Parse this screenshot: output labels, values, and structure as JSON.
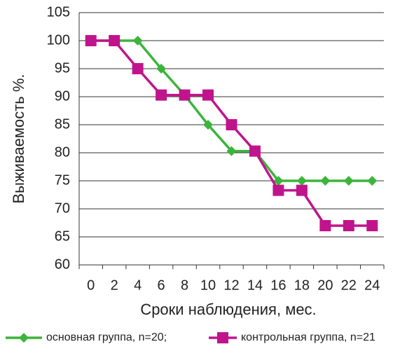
{
  "chart_data": {
    "type": "line",
    "x_label": "Сроки наблюдения, мес.",
    "y_label": "Выживаемость %.",
    "categories": [
      "0",
      "2",
      "4",
      "6",
      "8",
      "10",
      "12",
      "14",
      "16",
      "18",
      "20",
      "22",
      "24"
    ],
    "series": [
      {
        "name": "основная группа, n=20;",
        "color": "#3cb43c",
        "marker": "diamond",
        "values": [
          100,
          100,
          100,
          95,
          90.3,
          85,
          80.3,
          80.3,
          75,
          75,
          75,
          75,
          75
        ]
      },
      {
        "name": "контрольная группа, n=21",
        "color": "#c0148c",
        "marker": "square",
        "values": [
          100,
          100,
          95,
          90.3,
          90.3,
          90.3,
          85,
          80.3,
          73.3,
          73.3,
          67,
          67,
          67
        ]
      }
    ],
    "ylim": [
      60,
      105
    ],
    "yticks": [
      60,
      65,
      70,
      75,
      80,
      85,
      90,
      95,
      100,
      105
    ],
    "grid": true,
    "legend": "bottom"
  }
}
